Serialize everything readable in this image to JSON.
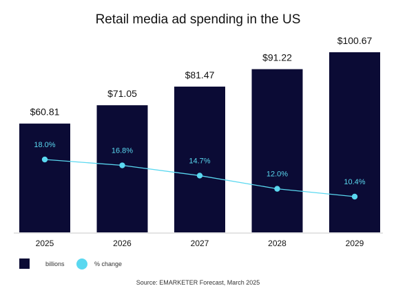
{
  "chart_data": {
    "type": "bar",
    "title": "Retail media ad spending in the US",
    "categories": [
      "2025",
      "2026",
      "2027",
      "2028",
      "2029"
    ],
    "series": [
      {
        "name": "billions",
        "type": "bar",
        "values": [
          60.81,
          71.05,
          81.47,
          91.22,
          100.67
        ],
        "labels": [
          "$60.81",
          "$71.05",
          "$81.47",
          "$91.22",
          "$100.67"
        ],
        "color": "#0b0b35"
      },
      {
        "name": "% change",
        "type": "line",
        "values": [
          18.0,
          16.8,
          14.7,
          12.0,
          10.4
        ],
        "labels": [
          "18.0%",
          "16.8%",
          "14.7%",
          "12.0%",
          "10.4%"
        ],
        "color": "#5ad8f0"
      }
    ],
    "grid": false,
    "legend_position": "bottom-left"
  },
  "source": "Source: EMARKETER Forecast, March 2025"
}
